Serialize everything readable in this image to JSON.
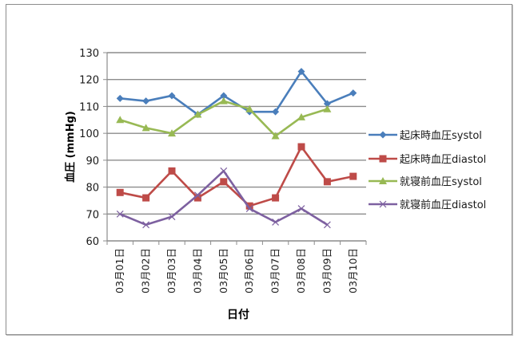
{
  "chart_data": {
    "type": "line",
    "title": "",
    "xlabel": "日付",
    "ylabel": "血圧 (mmHg)",
    "ylim": [
      60,
      130
    ],
    "yticks": [
      60,
      70,
      80,
      90,
      100,
      110,
      120,
      130
    ],
    "grid": "horizontal",
    "legend_position": "right",
    "categories": [
      "03月01日",
      "03月02日",
      "03月03日",
      "03月04日",
      "03月05日",
      "03月06日",
      "03月07日",
      "03月08日",
      "03月09日",
      "03月10日"
    ],
    "series": [
      {
        "name": "起床時血圧systol",
        "color": "#4a7ebb",
        "marker": "diamond",
        "values": [
          113,
          112,
          114,
          107,
          114,
          108,
          108,
          123,
          111,
          115
        ]
      },
      {
        "name": "起床時血圧diastol",
        "color": "#be4b48",
        "marker": "square",
        "values": [
          78,
          76,
          86,
          76,
          82,
          73,
          76,
          95,
          82,
          84
        ]
      },
      {
        "name": "就寝前血圧systol",
        "color": "#98b954",
        "marker": "triangle",
        "values": [
          105,
          102,
          100,
          107,
          112,
          109,
          99,
          106,
          109,
          null
        ]
      },
      {
        "name": "就寝前血圧diastol",
        "color": "#7d60a0",
        "marker": "x",
        "values": [
          70,
          66,
          69,
          77,
          86,
          72,
          67,
          72,
          66,
          null
        ]
      }
    ]
  },
  "colors": {
    "gridline": "#8c8c8c",
    "axis": "#8c8c8c",
    "frame": "#8c8c8c"
  }
}
